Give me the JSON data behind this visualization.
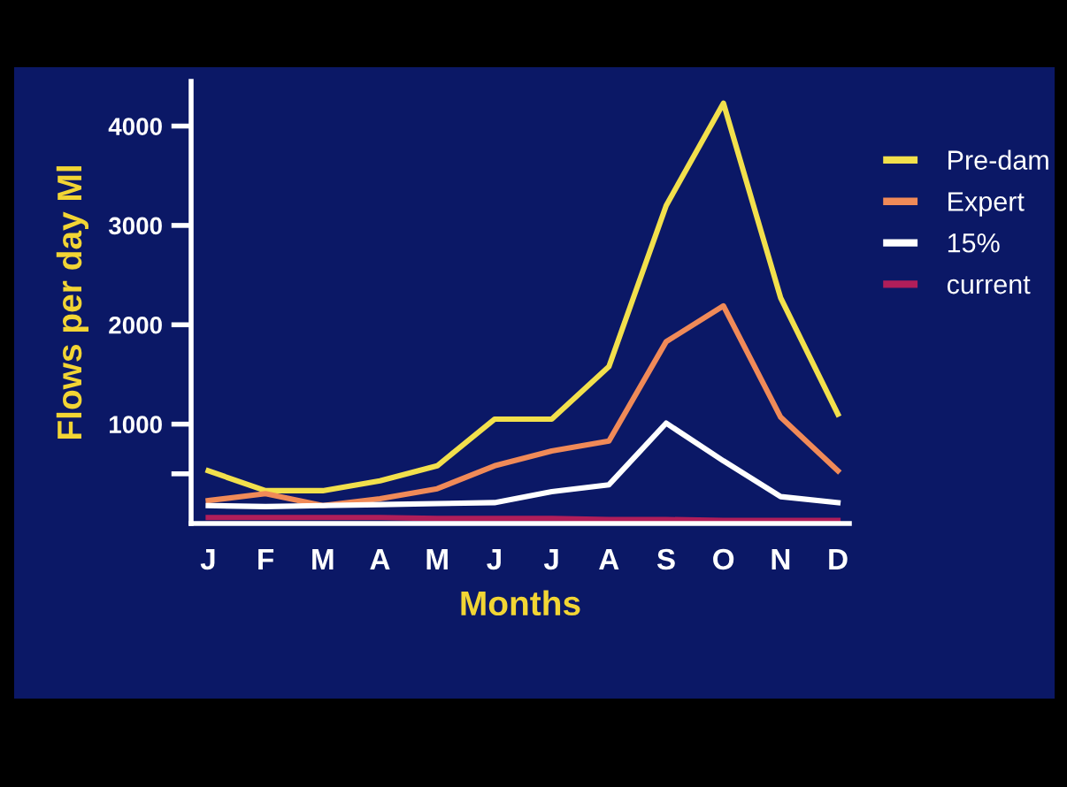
{
  "chart_data": {
    "type": "line",
    "xlabel": "Months",
    "ylabel": "Flows per day Ml",
    "categories": [
      "J",
      "F",
      "M",
      "A",
      "M",
      "J",
      "J",
      "A",
      "S",
      "O",
      "N",
      "D"
    ],
    "series": [
      {
        "name": "Pre-dam",
        "color": "#f2e04c",
        "values": [
          530,
          330,
          330,
          430,
          580,
          1050,
          1050,
          1580,
          3200,
          4230,
          2270,
          1100
        ]
      },
      {
        "name": "Expert",
        "color": "#f08a58",
        "values": [
          230,
          300,
          180,
          250,
          350,
          580,
          730,
          830,
          1830,
          2190,
          1070,
          530
        ]
      },
      {
        "name": "15%",
        "color": "#ffffff",
        "values": [
          180,
          170,
          180,
          190,
          200,
          210,
          320,
          390,
          1010,
          630,
          270,
          210
        ]
      },
      {
        "name": "current",
        "color": "#b01e5a",
        "values": [
          60,
          60,
          60,
          60,
          50,
          50,
          50,
          40,
          40,
          30,
          30,
          30
        ]
      }
    ],
    "ylim": [
      0,
      4450
    ],
    "yticks": [
      {
        "value": 500,
        "label": null
      },
      1000,
      2000,
      3000,
      4000
    ],
    "legend": "right",
    "grid": false,
    "marker": "none",
    "line_style": "solid"
  }
}
